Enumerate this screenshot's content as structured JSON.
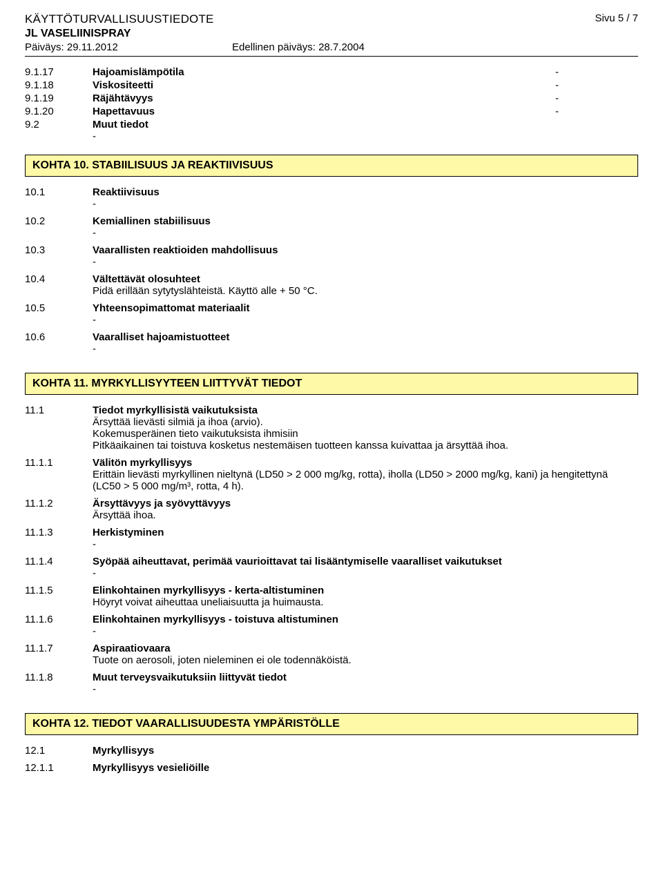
{
  "header": {
    "doc_title": "KÄYTTÖTURVALLISUUSTIEDOTE",
    "page_label": "Sivu  5 / 7",
    "product_name": "JL VASELIINISPRAY",
    "date_current_label": "Päiväys: 29.11.2012",
    "date_prev_label": "Edellinen päiväys: 28.7.2004"
  },
  "props": [
    {
      "num": "9.1.17",
      "label": "Hajoamislämpötila",
      "val": "-"
    },
    {
      "num": "9.1.18",
      "label": "Viskositeetti",
      "val": "-"
    },
    {
      "num": "9.1.19",
      "label": "Räjähtävyys",
      "val": "-"
    },
    {
      "num": "9.1.20",
      "label": "Hapettavuus",
      "val": "-"
    }
  ],
  "prop_tail": {
    "num": "9.2",
    "label": "Muut tiedot",
    "dash": "-"
  },
  "section10": {
    "title": "KOHTA 10. STABIILISUUS JA REAKTIIVISUUS",
    "items": [
      {
        "num": "10.1",
        "label": "Reaktiivisuus",
        "lines": [
          "-"
        ]
      },
      {
        "num": "10.2",
        "label": "Kemiallinen stabiilisuus",
        "lines": [
          "-"
        ]
      },
      {
        "num": "10.3",
        "label": "Vaarallisten reaktioiden mahdollisuus",
        "lines": [
          "-"
        ]
      },
      {
        "num": "10.4",
        "label": "Vältettävät olosuhteet",
        "lines": [
          "Pidä erillään sytytyslähteistä. Käyttö alle + 50 °C."
        ]
      },
      {
        "num": "10.5",
        "label": "Yhteensopimattomat materiaalit",
        "lines": [
          "-"
        ]
      },
      {
        "num": "10.6",
        "label": "Vaaralliset hajoamistuotteet",
        "lines": [
          "-"
        ]
      }
    ]
  },
  "section11": {
    "title": "KOHTA 11. MYRKYLLISYYTEEN LIITTYVÄT TIEDOT",
    "items": [
      {
        "num": "11.1",
        "label": "Tiedot myrkyllisistä vaikutuksista",
        "lines": [
          "Ärsyttää lievästi silmiä ja ihoa (arvio).",
          "Kokemusperäinen tieto vaikutuksista ihmisiin",
          "Pitkäaikainen tai toistuva kosketus nestemäisen tuotteen kanssa kuivattaa ja ärsyttää ihoa."
        ]
      },
      {
        "num": "11.1.1",
        "label": "Välitön myrkyllisyys",
        "lines": [
          "Erittäin lievästi myrkyllinen nieltynä (LD50 > 2 000 mg/kg, rotta), iholla (LD50 > 2000 mg/kg, kani) ja hengitettynä (LC50 > 5 000 mg/m³, rotta, 4 h)."
        ]
      },
      {
        "num": "11.1.2",
        "label": "Ärsyttävyys ja syövyttävyys",
        "lines": [
          "Ärsyttää ihoa."
        ]
      },
      {
        "num": "11.1.3",
        "label": "Herkistyminen",
        "lines": [
          "-"
        ]
      },
      {
        "num": "11.1.4",
        "label": "Syöpää aiheuttavat, perimää vaurioittavat tai lisääntymiselle vaaralliset vaikutukset",
        "lines": [
          "-"
        ]
      },
      {
        "num": "11.1.5",
        "label": "Elinkohtainen myrkyllisyys - kerta-altistuminen",
        "lines": [
          "Höyryt voivat aiheuttaa uneliaisuutta ja huimausta."
        ]
      },
      {
        "num": "11.1.6",
        "label": "Elinkohtainen myrkyllisyys - toistuva altistuminen",
        "lines": [
          "-"
        ]
      },
      {
        "num": "11.1.7",
        "label": "Aspiraatiovaara",
        "lines": [
          "Tuote on aerosoli, joten nieleminen ei ole todennäköistä."
        ]
      },
      {
        "num": "11.1.8",
        "label": "Muut terveysvaikutuksiin liittyvät tiedot",
        "lines": [
          "-"
        ]
      }
    ]
  },
  "section12": {
    "title": "KOHTA 12. TIEDOT VAARALLISUUDESTA YMPÄRISTÖLLE",
    "items": [
      {
        "num": "12.1",
        "label": "Myrkyllisyys",
        "lines": []
      },
      {
        "num": "12.1.1",
        "label": "Myrkyllisyys vesieliöille",
        "lines": []
      }
    ]
  },
  "colors": {
    "section_bg": "#fef9a6",
    "border": "#000000",
    "text": "#000000",
    "page_bg": "#ffffff"
  }
}
